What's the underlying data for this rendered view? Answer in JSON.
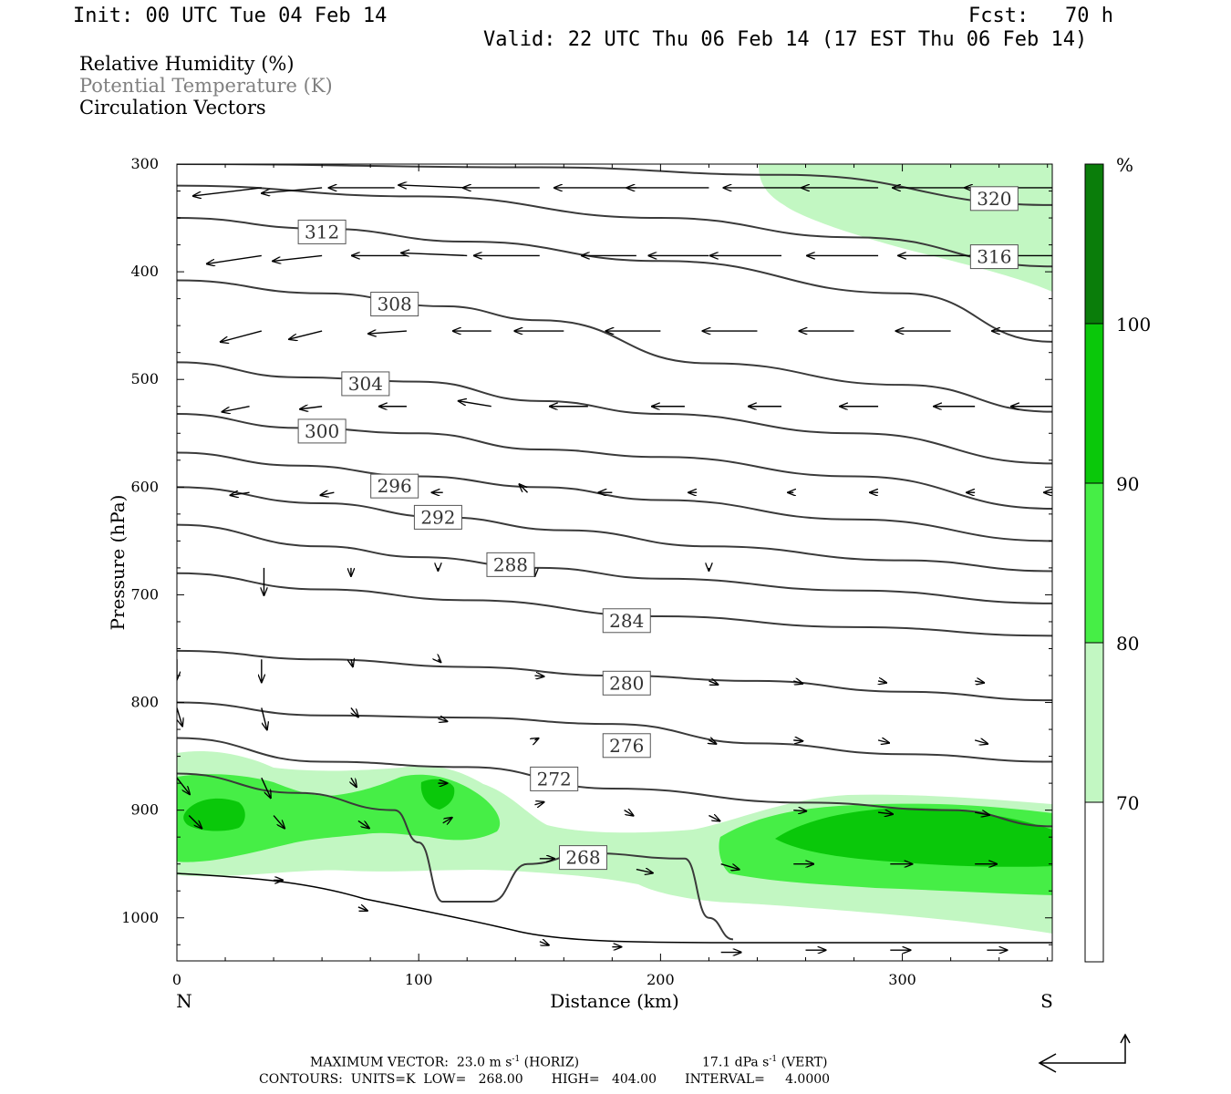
{
  "header": {
    "init": "Init: 00 UTC Tue 04 Feb 14",
    "fcst": "Fcst:   70 h",
    "valid": "Valid: 22 UTC Thu 06 Feb 14 (17 EST Thu 06 Feb 14)"
  },
  "fields": [
    {
      "label": "Relative Humidity (%)",
      "color": "#000000"
    },
    {
      "label": "Potential Temperature (K)",
      "color": "#808080"
    },
    {
      "label": "Circulation Vectors",
      "color": "#000000"
    }
  ],
  "colors": {
    "rh_70": "#c2f7c2",
    "rh_80": "#46ee46",
    "rh_90": "#0ac80a",
    "rh_100": "#0a7d0a",
    "theta_line": "#3a3a3a",
    "vector": "#000000"
  },
  "chart_data": {
    "type": "cross-section",
    "xlabel": "Distance (km)",
    "ylabel": "Pressure (hPa)",
    "xlim": [
      0,
      362
    ],
    "ylim": [
      1040,
      300
    ],
    "x_ticks": [
      0,
      100,
      200,
      300
    ],
    "y_ticks": [
      300,
      400,
      500,
      600,
      700,
      800,
      900,
      1000
    ],
    "x_end_labels": {
      "left": "N",
      "right": "S"
    },
    "theta_contours": [
      {
        "label": "320",
        "label_at": [
          338,
          332
        ],
        "points": [
          [
            0,
            300
          ],
          [
            150,
            303
          ],
          [
            250,
            310
          ],
          [
            362,
            338
          ]
        ]
      },
      {
        "label": "316",
        "label_at": [
          338,
          386
        ],
        "points": [
          [
            0,
            320
          ],
          [
            100,
            330
          ],
          [
            200,
            350
          ],
          [
            280,
            368
          ],
          [
            362,
            395
          ]
        ]
      },
      {
        "label": "312",
        "label_at": [
          60,
          363
        ],
        "points": [
          [
            0,
            350
          ],
          [
            60,
            360
          ],
          [
            120,
            372
          ],
          [
            200,
            390
          ],
          [
            300,
            420
          ],
          [
            362,
            465
          ]
        ]
      },
      {
        "label": "308",
        "label_at": [
          90,
          430
        ],
        "points": [
          [
            0,
            408
          ],
          [
            60,
            420
          ],
          [
            110,
            432
          ],
          [
            150,
            445
          ],
          [
            220,
            485
          ],
          [
            300,
            505
          ],
          [
            362,
            530
          ]
        ]
      },
      {
        "label": "304",
        "label_at": [
          78,
          504
        ],
        "points": [
          [
            0,
            484
          ],
          [
            50,
            498
          ],
          [
            100,
            502
          ],
          [
            150,
            520
          ],
          [
            200,
            532
          ],
          [
            280,
            550
          ],
          [
            362,
            578
          ]
        ]
      },
      {
        "label": "300",
        "label_at": [
          60,
          548
        ],
        "points": [
          [
            0,
            532
          ],
          [
            50,
            545
          ],
          [
            100,
            550
          ],
          [
            150,
            565
          ],
          [
            200,
            572
          ],
          [
            280,
            590
          ],
          [
            362,
            620
          ]
        ]
      },
      {
        "label": "296",
        "label_at": [
          90,
          599
        ],
        "points": [
          [
            0,
            568
          ],
          [
            50,
            580
          ],
          [
            100,
            590
          ],
          [
            150,
            600
          ],
          [
            200,
            612
          ],
          [
            280,
            630
          ],
          [
            362,
            650
          ]
        ]
      },
      {
        "label": "292",
        "label_at": [
          108,
          628
        ],
        "points": [
          [
            0,
            600
          ],
          [
            60,
            615
          ],
          [
            110,
            628
          ],
          [
            160,
            640
          ],
          [
            220,
            655
          ],
          [
            300,
            668
          ],
          [
            362,
            678
          ]
        ]
      },
      {
        "label": "288",
        "label_at": [
          138,
          672
        ],
        "points": [
          [
            0,
            635
          ],
          [
            60,
            655
          ],
          [
            100,
            665
          ],
          [
            150,
            675
          ],
          [
            200,
            685
          ],
          [
            280,
            696
          ],
          [
            362,
            708
          ]
        ]
      },
      {
        "label": "284",
        "label_at": [
          186,
          724
        ],
        "points": [
          [
            0,
            680
          ],
          [
            60,
            695
          ],
          [
            120,
            705
          ],
          [
            200,
            720
          ],
          [
            280,
            730
          ],
          [
            362,
            738
          ]
        ]
      },
      {
        "label": "280",
        "label_at": [
          186,
          782
        ],
        "points": [
          [
            0,
            752
          ],
          [
            60,
            760
          ],
          [
            120,
            767
          ],
          [
            180,
            775
          ],
          [
            240,
            780
          ],
          [
            300,
            790
          ],
          [
            362,
            798
          ]
        ]
      },
      {
        "label": "276",
        "label_at": [
          186,
          840
        ],
        "points": [
          [
            0,
            800
          ],
          [
            60,
            812
          ],
          [
            120,
            814
          ],
          [
            180,
            820
          ],
          [
            240,
            838
          ],
          [
            300,
            848
          ],
          [
            362,
            855
          ]
        ]
      },
      {
        "label": "272",
        "label_at": [
          156,
          871
        ],
        "points": [
          [
            0,
            833
          ],
          [
            60,
            855
          ],
          [
            120,
            860
          ],
          [
            180,
            880
          ],
          [
            260,
            893
          ],
          [
            320,
            900
          ],
          [
            362,
            915
          ]
        ]
      },
      {
        "label": "268",
        "label_at": [
          168,
          944
        ],
        "points": [
          [
            0,
            866
          ],
          [
            50,
            884
          ],
          [
            90,
            900
          ],
          [
            100,
            930
          ],
          [
            110,
            985
          ],
          [
            130,
            985
          ],
          [
            145,
            950
          ],
          [
            170,
            940
          ],
          [
            210,
            945
          ],
          [
            220,
            1000
          ],
          [
            230,
            1020
          ]
        ]
      }
    ],
    "rh_bands": [
      70,
      80,
      90,
      100
    ],
    "colorbar_label": "%",
    "colorbar_ticks": [
      "70",
      "80",
      "90",
      "100"
    ],
    "vector_rows": [
      {
        "p": 322,
        "x": [
          35,
          60,
          90,
          120,
          150,
          190,
          220,
          260,
          290,
          330,
          362
        ],
        "u": [
          -25,
          -22,
          -24,
          -25,
          -28,
          -30,
          -30,
          -30,
          -28,
          -30,
          -32
        ],
        "w": [
          3,
          2,
          0,
          -1,
          0,
          0,
          0,
          0,
          0,
          0,
          0
        ]
      },
      {
        "p": 385,
        "x": [
          35,
          60,
          95,
          120,
          150,
          190,
          220,
          250,
          290,
          330,
          362
        ],
        "u": [
          -20,
          -18,
          -20,
          -24,
          -24,
          -20,
          -22,
          -26,
          -26,
          -28,
          -30
        ],
        "w": [
          3,
          2,
          0,
          -1,
          0,
          0,
          0,
          0,
          0,
          0,
          0
        ]
      },
      {
        "p": 455,
        "x": [
          35,
          60,
          95,
          130,
          160,
          200,
          240,
          280,
          320,
          362
        ],
        "u": [
          -15,
          -12,
          -14,
          -14,
          -18,
          -20,
          -20,
          -20,
          -20,
          -22
        ],
        "w": [
          4,
          3,
          1,
          0,
          0,
          0,
          0,
          0,
          0,
          0
        ]
      },
      {
        "p": 525,
        "x": [
          30,
          60,
          95,
          130,
          170,
          210,
          250,
          290,
          330,
          362
        ],
        "u": [
          -10,
          -8,
          -10,
          -12,
          -14,
          -12,
          -12,
          -14,
          -15,
          -15
        ],
        "w": [
          2,
          1,
          0,
          -2,
          0,
          0,
          0,
          0,
          0,
          0
        ]
      },
      {
        "p": 605,
        "x": [
          30,
          65,
          110,
          145,
          180,
          215,
          255,
          290,
          330,
          362
        ],
        "u": [
          -7,
          -5,
          -4,
          -3,
          -5,
          -3,
          -2,
          -3,
          -3,
          -3
        ],
        "w": [
          1,
          1,
          0,
          -3,
          0,
          0,
          0,
          0,
          0,
          0
        ]
      },
      {
        "p": 675,
        "x": [
          36,
          72,
          108,
          148,
          185,
          220,
          255,
          290,
          330
        ],
        "u": [
          0,
          0,
          0,
          0,
          0,
          0,
          0,
          0,
          0
        ],
        "w": [
          10,
          3,
          1,
          3,
          0,
          1,
          0,
          0,
          0
        ]
      }
    ],
    "max_vector": "MAXIMUM VECTOR:  23.0 m s",
    "max_vector_vert": "17.1 dPa s",
    "contours_note": "CONTOURS:  UNITS=K  LOW=   268.00       HIGH=   404.00       INTERVAL=     4.0000"
  },
  "footer": {
    "max_vector_label": "MAXIMUM VECTOR:  23.0 m s",
    "max_vector_sup": "-1",
    "horiz": "(HORIZ)",
    "vert_value": "17.1 dPa s",
    "vert_sup": "-1",
    "vert": "(VERT)",
    "contours": "CONTOURS:  UNITS=K  LOW=   268.00       HIGH=   404.00       INTERVAL=     4.0000"
  }
}
